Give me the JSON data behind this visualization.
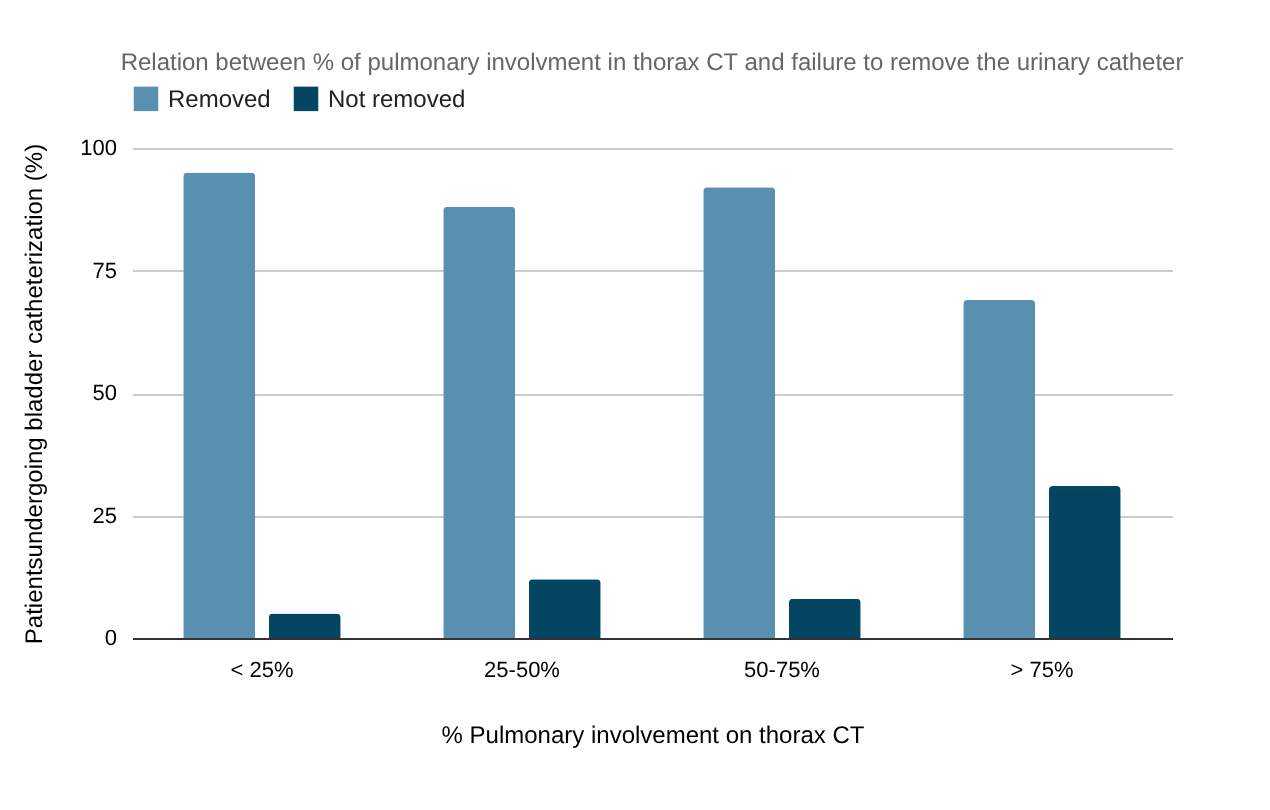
{
  "chart_data": {
    "type": "bar",
    "title": "Relation between % of pulmonary involvment in thorax CT and failure to remove the urinary catheter",
    "xlabel": "% Pulmonary involvement on thorax CT",
    "ylabel": "Patientsundergoing bladder catheterization (%)",
    "categories": [
      "< 25%",
      "25-50%",
      "50-75%",
      "> 75%"
    ],
    "series": [
      {
        "name": "Removed",
        "color": "#5990b0",
        "values": [
          95,
          88,
          92,
          69
        ]
      },
      {
        "name": "Not removed",
        "color": "#044562",
        "values": [
          5,
          12,
          8,
          31
        ]
      }
    ],
    "ylim": [
      0,
      100
    ],
    "yticks": [
      0,
      25,
      50,
      75,
      100
    ],
    "grid": "y",
    "legend": "top"
  }
}
